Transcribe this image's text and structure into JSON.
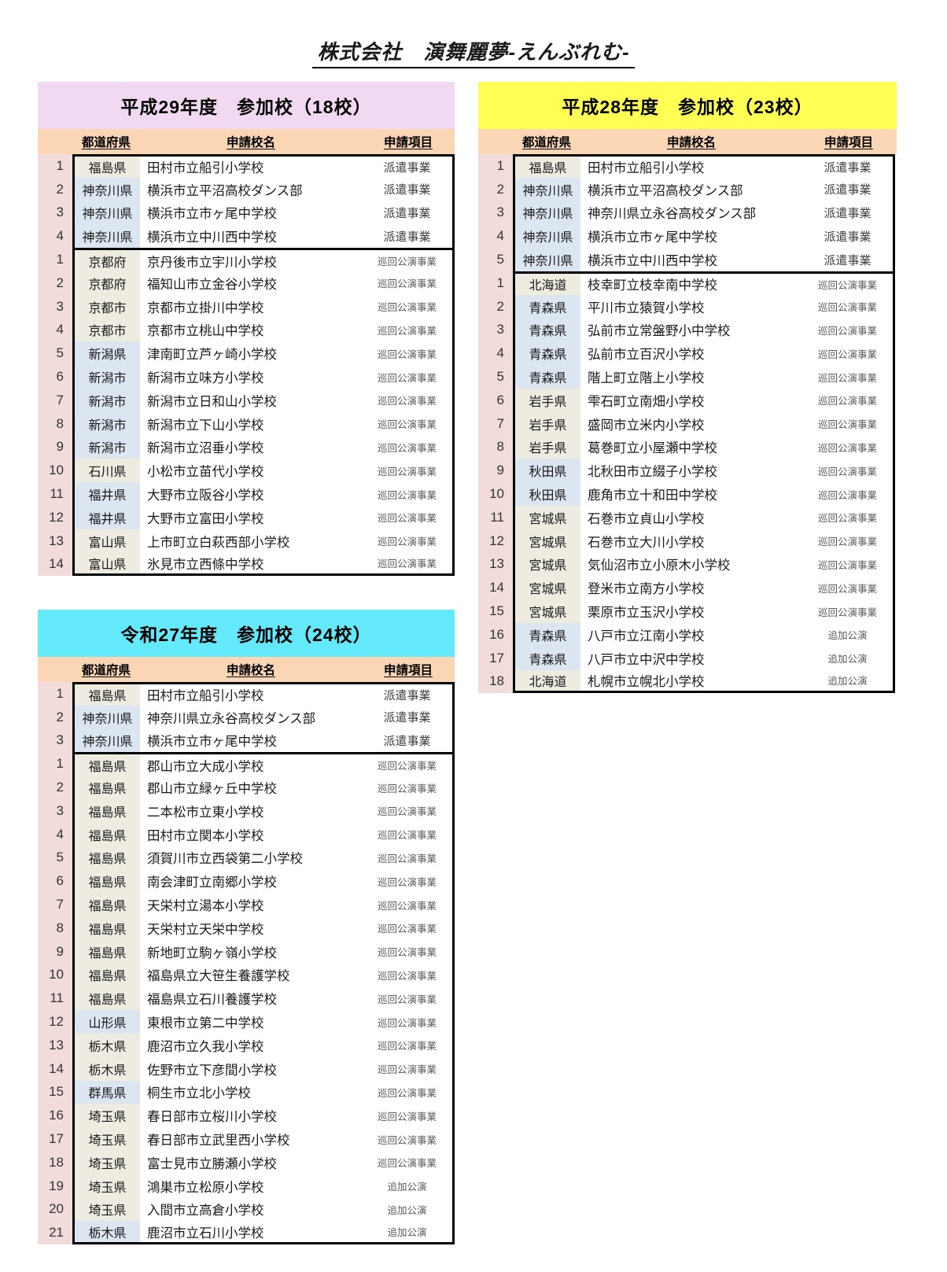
{
  "page_title": "株式会社　演舞麗夢-えんぶれむ-",
  "column_headers": {
    "prefecture": "都道府県",
    "school_name": "申請校名",
    "application_item": "申請項目"
  },
  "colors": {
    "title_h29": "#F2D9F2",
    "title_h28": "#FFFF54",
    "title_r27": "#63E9F9",
    "header_row": "#FBD6B4",
    "number_col": "#F2DCDB",
    "pref_beige": "#EEECE1",
    "pref_blue": "#DCE6F1",
    "border": "#000000"
  },
  "item_styles": {
    "派遣事業": "lg",
    "巡回公演事業": "sm",
    "追加公演": "sm"
  },
  "tables": [
    {
      "id": "h29",
      "title": "平成29年度　参加校（18校）",
      "title_color_key": "title_h29",
      "sections": [
        {
          "rows": [
            {
              "no": 1,
              "pref": "福島県",
              "c": "beige",
              "school": "田村市立船引小学校",
              "item": "派遣事業"
            },
            {
              "no": 2,
              "pref": "神奈川県",
              "c": "blue",
              "school": "横浜市立平沼高校ダンス部",
              "item": "派遣事業"
            },
            {
              "no": 3,
              "pref": "神奈川県",
              "c": "blue",
              "school": "横浜市立市ヶ尾中学校",
              "item": "派遣事業"
            },
            {
              "no": 4,
              "pref": "神奈川県",
              "c": "blue",
              "school": "横浜市立中川西中学校",
              "item": "派遣事業"
            }
          ]
        },
        {
          "rows": [
            {
              "no": 1,
              "pref": "京都府",
              "c": "beige",
              "school": "京丹後市立宇川小学校",
              "item": "巡回公演事業"
            },
            {
              "no": 2,
              "pref": "京都府",
              "c": "beige",
              "school": "福知山市立金谷小学校",
              "item": "巡回公演事業"
            },
            {
              "no": 3,
              "pref": "京都市",
              "c": "beige",
              "school": "京都市立掛川中学校",
              "item": "巡回公演事業"
            },
            {
              "no": 4,
              "pref": "京都市",
              "c": "beige",
              "school": "京都市立桃山中学校",
              "item": "巡回公演事業"
            },
            {
              "no": 5,
              "pref": "新潟県",
              "c": "blue",
              "school": "津南町立芦ヶ崎小学校",
              "item": "巡回公演事業"
            },
            {
              "no": 6,
              "pref": "新潟市",
              "c": "blue",
              "school": "新潟市立味方小学校",
              "item": "巡回公演事業"
            },
            {
              "no": 7,
              "pref": "新潟市",
              "c": "blue",
              "school": "新潟市立日和山小学校",
              "item": "巡回公演事業"
            },
            {
              "no": 8,
              "pref": "新潟市",
              "c": "blue",
              "school": "新潟市立下山小学校",
              "item": "巡回公演事業"
            },
            {
              "no": 9,
              "pref": "新潟市",
              "c": "blue",
              "school": "新潟市立沼垂小学校",
              "item": "巡回公演事業"
            },
            {
              "no": 10,
              "pref": "石川県",
              "c": "beige",
              "school": "小松市立苗代小学校",
              "item": "巡回公演事業"
            },
            {
              "no": 11,
              "pref": "福井県",
              "c": "blue",
              "school": "大野市立阪谷小学校",
              "item": "巡回公演事業"
            },
            {
              "no": 12,
              "pref": "福井県",
              "c": "blue",
              "school": "大野市立富田小学校",
              "item": "巡回公演事業"
            },
            {
              "no": 13,
              "pref": "富山県",
              "c": "beige",
              "school": "上市町立白萩西部小学校",
              "item": "巡回公演事業"
            },
            {
              "no": 14,
              "pref": "富山県",
              "c": "beige",
              "school": "氷見市立西條中学校",
              "item": "巡回公演事業"
            }
          ]
        }
      ]
    },
    {
      "id": "h28",
      "title": "平成28年度　参加校（23校）",
      "title_color_key": "title_h28",
      "sections": [
        {
          "rows": [
            {
              "no": 1,
              "pref": "福島県",
              "c": "beige",
              "school": "田村市立船引小学校",
              "item": "派遣事業"
            },
            {
              "no": 2,
              "pref": "神奈川県",
              "c": "blue",
              "school": "横浜市立平沼高校ダンス部",
              "item": "派遣事業"
            },
            {
              "no": 3,
              "pref": "神奈川県",
              "c": "blue",
              "school": "神奈川県立永谷高校ダンス部",
              "item": "派遣事業"
            },
            {
              "no": 4,
              "pref": "神奈川県",
              "c": "blue",
              "school": "横浜市立市ヶ尾中学校",
              "item": "派遣事業"
            },
            {
              "no": 5,
              "pref": "神奈川県",
              "c": "blue",
              "school": "横浜市立中川西中学校",
              "item": "派遣事業"
            }
          ]
        },
        {
          "rows": [
            {
              "no": 1,
              "pref": "北海道",
              "c": "beige",
              "school": "枝幸町立枝幸南中学校",
              "item": "巡回公演事業"
            },
            {
              "no": 2,
              "pref": "青森県",
              "c": "blue",
              "school": "平川市立猿賀小学校",
              "item": "巡回公演事業"
            },
            {
              "no": 3,
              "pref": "青森県",
              "c": "blue",
              "school": "弘前市立常盤野小中学校",
              "item": "巡回公演事業"
            },
            {
              "no": 4,
              "pref": "青森県",
              "c": "blue",
              "school": "弘前市立百沢小学校",
              "item": "巡回公演事業"
            },
            {
              "no": 5,
              "pref": "青森県",
              "c": "blue",
              "school": "階上町立階上小学校",
              "item": "巡回公演事業"
            },
            {
              "no": 6,
              "pref": "岩手県",
              "c": "beige",
              "school": "雫石町立南畑小学校",
              "item": "巡回公演事業"
            },
            {
              "no": 7,
              "pref": "岩手県",
              "c": "beige",
              "school": "盛岡市立米内小学校",
              "item": "巡回公演事業"
            },
            {
              "no": 8,
              "pref": "岩手県",
              "c": "beige",
              "school": "葛巻町立小屋瀬中学校",
              "item": "巡回公演事業"
            },
            {
              "no": 9,
              "pref": "秋田県",
              "c": "blue",
              "school": "北秋田市立綴子小学校",
              "item": "巡回公演事業"
            },
            {
              "no": 10,
              "pref": "秋田県",
              "c": "blue",
              "school": "鹿角市立十和田中学校",
              "item": "巡回公演事業"
            },
            {
              "no": 11,
              "pref": "宮城県",
              "c": "beige",
              "school": "石巻市立貞山小学校",
              "item": "巡回公演事業"
            },
            {
              "no": 12,
              "pref": "宮城県",
              "c": "beige",
              "school": "石巻市立大川小学校",
              "item": "巡回公演事業"
            },
            {
              "no": 13,
              "pref": "宮城県",
              "c": "beige",
              "school": "気仙沼市立小原木小学校",
              "item": "巡回公演事業"
            },
            {
              "no": 14,
              "pref": "宮城県",
              "c": "beige",
              "school": "登米市立南方小学校",
              "item": "巡回公演事業"
            },
            {
              "no": 15,
              "pref": "宮城県",
              "c": "beige",
              "school": "栗原市立玉沢小学校",
              "item": "巡回公演事業"
            },
            {
              "no": 16,
              "pref": "青森県",
              "c": "blue",
              "school": "八戸市立江南小学校",
              "item": "追加公演"
            },
            {
              "no": 17,
              "pref": "青森県",
              "c": "blue",
              "school": "八戸市立中沢中学校",
              "item": "追加公演"
            },
            {
              "no": 18,
              "pref": "北海道",
              "c": "beige",
              "school": "札幌市立幌北小学校",
              "item": "追加公演"
            }
          ]
        }
      ]
    },
    {
      "id": "r27",
      "title": "令和27年度　参加校（24校）",
      "title_color_key": "title_r27",
      "sections": [
        {
          "rows": [
            {
              "no": 1,
              "pref": "福島県",
              "c": "beige",
              "school": "田村市立船引小学校",
              "item": "派遣事業"
            },
            {
              "no": 2,
              "pref": "神奈川県",
              "c": "blue",
              "school": "神奈川県立永谷高校ダンス部",
              "item": "派遣事業"
            },
            {
              "no": 3,
              "pref": "神奈川県",
              "c": "blue",
              "school": "横浜市立市ヶ尾中学校",
              "item": "派遣事業"
            }
          ]
        },
        {
          "rows": [
            {
              "no": 1,
              "pref": "福島県",
              "c": "beige",
              "school": "郡山市立大成小学校",
              "item": "巡回公演事業"
            },
            {
              "no": 2,
              "pref": "福島県",
              "c": "beige",
              "school": "郡山市立緑ヶ丘中学校",
              "item": "巡回公演事業"
            },
            {
              "no": 3,
              "pref": "福島県",
              "c": "beige",
              "school": "二本松市立東小学校",
              "item": "巡回公演事業"
            },
            {
              "no": 4,
              "pref": "福島県",
              "c": "beige",
              "school": "田村市立関本小学校",
              "item": "巡回公演事業"
            },
            {
              "no": 5,
              "pref": "福島県",
              "c": "beige",
              "school": "須賀川市立西袋第二小学校",
              "item": "巡回公演事業"
            },
            {
              "no": 6,
              "pref": "福島県",
              "c": "beige",
              "school": "南会津町立南郷小学校",
              "item": "巡回公演事業"
            },
            {
              "no": 7,
              "pref": "福島県",
              "c": "beige",
              "school": "天栄村立湯本小学校",
              "item": "巡回公演事業"
            },
            {
              "no": 8,
              "pref": "福島県",
              "c": "beige",
              "school": "天栄村立天栄中学校",
              "item": "巡回公演事業"
            },
            {
              "no": 9,
              "pref": "福島県",
              "c": "beige",
              "school": "新地町立駒ヶ嶺小学校",
              "item": "巡回公演事業"
            },
            {
              "no": 10,
              "pref": "福島県",
              "c": "beige",
              "school": "福島県立大笹生養護学校",
              "item": "巡回公演事業"
            },
            {
              "no": 11,
              "pref": "福島県",
              "c": "beige",
              "school": "福島県立石川養護学校",
              "item": "巡回公演事業"
            },
            {
              "no": 12,
              "pref": "山形県",
              "c": "blue",
              "school": "東根市立第二中学校",
              "item": "巡回公演事業"
            },
            {
              "no": 13,
              "pref": "栃木県",
              "c": "beige",
              "school": "鹿沼市立久我小学校",
              "item": "巡回公演事業"
            },
            {
              "no": 14,
              "pref": "栃木県",
              "c": "beige",
              "school": "佐野市立下彦間小学校",
              "item": "巡回公演事業"
            },
            {
              "no": 15,
              "pref": "群馬県",
              "c": "blue",
              "school": "桐生市立北小学校",
              "item": "巡回公演事業"
            },
            {
              "no": 16,
              "pref": "埼玉県",
              "c": "beige",
              "school": "春日部市立桜川小学校",
              "item": "巡回公演事業"
            },
            {
              "no": 17,
              "pref": "埼玉県",
              "c": "beige",
              "school": "春日部市立武里西小学校",
              "item": "巡回公演事業"
            },
            {
              "no": 18,
              "pref": "埼玉県",
              "c": "beige",
              "school": "富士見市立勝瀬小学校",
              "item": "巡回公演事業"
            },
            {
              "no": 19,
              "pref": "埼玉県",
              "c": "beige",
              "school": "鴻巣市立松原小学校",
              "item": "追加公演"
            },
            {
              "no": 20,
              "pref": "埼玉県",
              "c": "beige",
              "school": "入間市立高倉小学校",
              "item": "追加公演"
            },
            {
              "no": 21,
              "pref": "栃木県",
              "c": "blue",
              "school": "鹿沼市立石川小学校",
              "item": "追加公演"
            }
          ]
        }
      ]
    }
  ]
}
